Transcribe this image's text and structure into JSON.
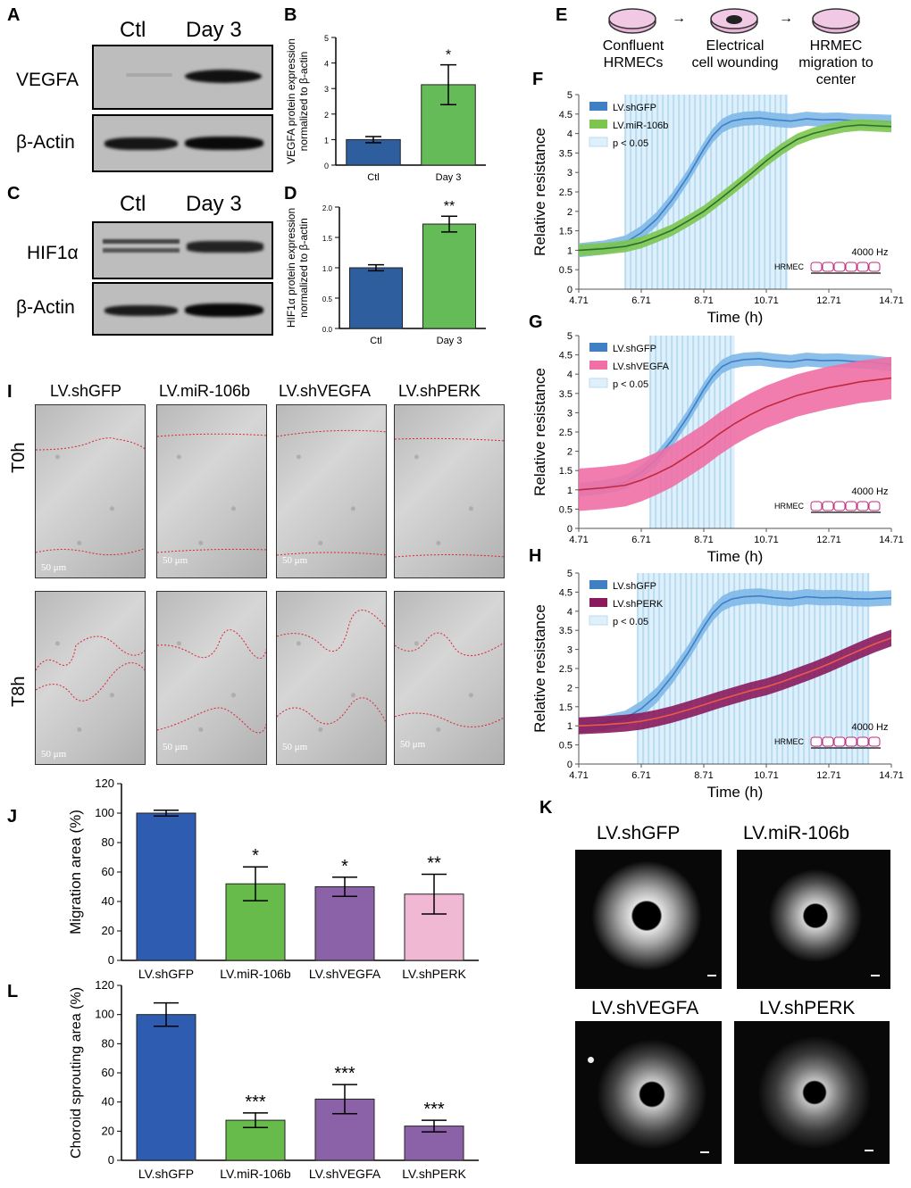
{
  "panels": {
    "A": "A",
    "B": "B",
    "C": "C",
    "D": "D",
    "E": "E",
    "F": "F",
    "G": "G",
    "H": "H",
    "I": "I",
    "J": "J",
    "K": "K",
    "L": "L"
  },
  "blots": {
    "col_ctl": "Ctl",
    "col_day3": "Day 3",
    "vegfa": "VEGFA",
    "hif1a": "HIF1α",
    "actin": "β-Actin"
  },
  "schematic": {
    "step1": [
      "Confluent",
      "HRMECs"
    ],
    "step2": [
      "Electrical",
      "cell wounding"
    ],
    "step3": [
      "HRMEC",
      "migration to",
      "center"
    ],
    "arrow": "→"
  },
  "chart_data": [
    {
      "id": "B",
      "type": "bar",
      "categories": [
        "Ctl",
        "Day 3"
      ],
      "values": [
        1.0,
        3.15
      ],
      "errors": [
        0.12,
        0.78
      ],
      "colors": [
        "#2e5e9e",
        "#66bb59"
      ],
      "ylabel": [
        "VEGFA protein expression",
        "normalized to β-actin"
      ],
      "ylim": [
        0,
        5
      ],
      "yticks": [
        "0",
        "1",
        "2",
        "3",
        "4",
        "5"
      ],
      "sig": [
        "",
        "*"
      ]
    },
    {
      "id": "D",
      "type": "bar",
      "categories": [
        "Ctl",
        "Day 3"
      ],
      "values": [
        1.0,
        1.72
      ],
      "errors": [
        0.05,
        0.13
      ],
      "colors": [
        "#2e5e9e",
        "#66bb59"
      ],
      "ylabel": [
        "HIF1α protein expression",
        "normalized to β-actin"
      ],
      "ylim": [
        0,
        2
      ],
      "yticks": [
        "0.0",
        "0.5",
        "1.0",
        "1.5",
        "2.0"
      ],
      "sig": [
        "",
        "**"
      ]
    },
    {
      "id": "F",
      "type": "line",
      "xlabel": "Time (h)",
      "ylabel": "Relative resistance",
      "xlim": [
        4.71,
        14.71
      ],
      "ylim": [
        0,
        5
      ],
      "xticks": [
        "4.71",
        "6.71",
        "8.71",
        "10.71",
        "12.71",
        "14.71"
      ],
      "yticks": [
        "0",
        "0.5",
        "1",
        "1.5",
        "2",
        "2.5",
        "3",
        "3.5",
        "4",
        "4.5",
        "5"
      ],
      "sig_range": [
        6.2,
        11.4
      ],
      "legend": [
        "LV.shGFP",
        "LV.miR-106b",
        "p < 0.05"
      ],
      "freq": "4000 Hz",
      "cell": "HRMEC",
      "series": [
        {
          "name": "LV.shGFP",
          "color": "#3f7fc4",
          "band": "#7fb8e8",
          "x": [
            4.71,
            5.5,
            6.2,
            6.71,
            7.2,
            7.7,
            8.2,
            8.71,
            9.0,
            9.3,
            9.6,
            10.0,
            10.5,
            11.0,
            11.5,
            12.0,
            12.5,
            13.0,
            13.5,
            14.0,
            14.71
          ],
          "y": [
            1.0,
            1.07,
            1.2,
            1.45,
            1.8,
            2.3,
            2.9,
            3.6,
            3.95,
            4.2,
            4.32,
            4.38,
            4.4,
            4.35,
            4.32,
            4.38,
            4.35,
            4.36,
            4.33,
            4.32,
            4.3
          ],
          "err": 0.18
        },
        {
          "name": "LV.miR-106b",
          "color": "#2f6e2a",
          "band": "#7cc64f",
          "x": [
            4.71,
            5.5,
            6.2,
            6.71,
            7.2,
            7.7,
            8.2,
            8.71,
            9.2,
            9.7,
            10.2,
            10.71,
            11.2,
            11.7,
            12.2,
            12.71,
            13.2,
            13.7,
            14.2,
            14.71
          ],
          "y": [
            1.0,
            1.04,
            1.1,
            1.2,
            1.35,
            1.52,
            1.75,
            2.0,
            2.3,
            2.62,
            2.95,
            3.3,
            3.6,
            3.85,
            4.0,
            4.1,
            4.18,
            4.22,
            4.2,
            4.18
          ],
          "err": 0.15
        }
      ]
    },
    {
      "id": "G",
      "type": "line",
      "xlabel": "Time (h)",
      "ylabel": "Relative resistance",
      "xlim": [
        4.71,
        14.71
      ],
      "ylim": [
        0,
        5
      ],
      "xticks": [
        "4.71",
        "6.71",
        "8.71",
        "10.71",
        "12.71",
        "14.71"
      ],
      "yticks": [
        "0",
        "0.5",
        "1",
        "1.5",
        "2",
        "2.5",
        "3",
        "3.5",
        "4",
        "4.5",
        "5"
      ],
      "sig_range": [
        7.0,
        9.7
      ],
      "legend": [
        "LV.shGFP",
        "LV.shVEGFA",
        "p < 0.05"
      ],
      "freq": "4000 Hz",
      "cell": "HRMEC",
      "series": [
        {
          "name": "LV.shGFP",
          "color": "#3f7fc4",
          "band": "#7fb8e8",
          "x": [
            4.71,
            5.5,
            6.2,
            6.71,
            7.2,
            7.7,
            8.2,
            8.71,
            9.0,
            9.3,
            9.6,
            10.0,
            10.5,
            11.0,
            11.5,
            12.0,
            12.5,
            13.0,
            13.5,
            14.0,
            14.71
          ],
          "y": [
            1.0,
            1.07,
            1.2,
            1.45,
            1.8,
            2.3,
            2.9,
            3.6,
            3.95,
            4.2,
            4.32,
            4.38,
            4.4,
            4.35,
            4.32,
            4.38,
            4.35,
            4.36,
            4.33,
            4.32,
            4.25
          ],
          "err": 0.18
        },
        {
          "name": "LV.shVEGFA",
          "color": "#c2283e",
          "band": "#f06fa5",
          "x": [
            4.71,
            5.5,
            6.2,
            6.71,
            7.2,
            7.7,
            8.2,
            8.71,
            9.2,
            9.7,
            10.2,
            10.71,
            11.2,
            11.7,
            12.2,
            12.71,
            13.2,
            13.7,
            14.2,
            14.71
          ],
          "y": [
            1.0,
            1.05,
            1.12,
            1.25,
            1.42,
            1.62,
            1.88,
            2.15,
            2.45,
            2.72,
            2.95,
            3.15,
            3.3,
            3.45,
            3.55,
            3.65,
            3.72,
            3.8,
            3.85,
            3.9
          ],
          "err": 0.55
        }
      ]
    },
    {
      "id": "H",
      "type": "line",
      "xlabel": "Time (h)",
      "ylabel": "Relative resistance",
      "xlim": [
        4.71,
        14.71
      ],
      "ylim": [
        0,
        5
      ],
      "xticks": [
        "4.71",
        "6.71",
        "8.71",
        "10.71",
        "12.71",
        "14.71"
      ],
      "yticks": [
        "0",
        "0.5",
        "1",
        "1.5",
        "2",
        "2.5",
        "3",
        "3.5",
        "4",
        "4.5",
        "5"
      ],
      "sig_range": [
        6.6,
        14.0
      ],
      "legend": [
        "LV.shGFP",
        "LV.shPERK",
        "p < 0.05"
      ],
      "freq": "4000 Hz",
      "cell": "HRMEC",
      "series": [
        {
          "name": "LV.shGFP",
          "color": "#3f7fc4",
          "band": "#7fb8e8",
          "x": [
            4.71,
            5.5,
            6.2,
            6.71,
            7.2,
            7.7,
            8.2,
            8.71,
            9.0,
            9.3,
            9.6,
            10.0,
            10.5,
            11.0,
            11.5,
            12.0,
            12.5,
            13.0,
            13.5,
            14.0,
            14.71
          ],
          "y": [
            1.0,
            1.07,
            1.2,
            1.45,
            1.8,
            2.3,
            2.9,
            3.6,
            3.95,
            4.2,
            4.32,
            4.38,
            4.4,
            4.35,
            4.32,
            4.38,
            4.35,
            4.36,
            4.33,
            4.32,
            4.35
          ],
          "err": 0.2
        },
        {
          "name": "LV.shPERK",
          "color": "#e85a4a",
          "band": "#8a1a5c",
          "x": [
            4.71,
            5.5,
            6.2,
            6.71,
            7.2,
            7.7,
            8.2,
            8.71,
            9.2,
            9.7,
            10.2,
            10.71,
            11.2,
            11.7,
            12.2,
            12.71,
            13.2,
            13.7,
            14.2,
            14.71
          ],
          "y": [
            1.0,
            1.03,
            1.07,
            1.12,
            1.2,
            1.3,
            1.42,
            1.55,
            1.68,
            1.8,
            1.92,
            2.02,
            2.15,
            2.3,
            2.45,
            2.62,
            2.8,
            2.98,
            3.15,
            3.3
          ],
          "err": 0.22
        }
      ]
    },
    {
      "id": "J",
      "type": "bar",
      "categories": [
        "LV.shGFP",
        "LV.miR-106b",
        "LV.shVEGFA",
        "LV.shPERK"
      ],
      "values": [
        100,
        52,
        50,
        45
      ],
      "errors": [
        2,
        11.5,
        6.5,
        13.5
      ],
      "colors": [
        "#2e5cb0",
        "#66bb4a",
        "#8b62a8",
        "#f0b8d2"
      ],
      "ylabel": [
        "Migration area (%)"
      ],
      "ylim": [
        0,
        120
      ],
      "yticks": [
        "0",
        "20",
        "40",
        "60",
        "80",
        "100",
        "120"
      ],
      "sig": [
        "",
        "*",
        "*",
        "**"
      ]
    },
    {
      "id": "L",
      "type": "bar",
      "categories": [
        "LV.shGFP",
        "LV.miR-106b",
        "LV.shVEGFA",
        "LV.shPERK"
      ],
      "values": [
        100,
        27.5,
        42,
        23.5
      ],
      "errors": [
        8,
        5,
        10,
        4
      ],
      "colors": [
        "#2e5cb0",
        "#66bb4a",
        "#8b62a8",
        "#8b62a8"
      ],
      "ylabel": [
        "Choroid sprouting area (%)"
      ],
      "ylim": [
        0,
        120
      ],
      "yticks": [
        "0",
        "20",
        "40",
        "60",
        "80",
        "100",
        "120"
      ],
      "sig": [
        "",
        "***",
        "***",
        "***"
      ]
    }
  ],
  "panel_I": {
    "columns": [
      "LV.shGFP",
      "LV.miR-106b",
      "LV.shVEGFA",
      "LV.shPERK"
    ],
    "rows": [
      "T0h",
      "T8h"
    ],
    "scale": "50 μm"
  },
  "panel_K": {
    "titles": [
      "LV.shGFP",
      "LV.miR-106b",
      "LV.shVEGFA",
      "LV.shPERK"
    ]
  }
}
